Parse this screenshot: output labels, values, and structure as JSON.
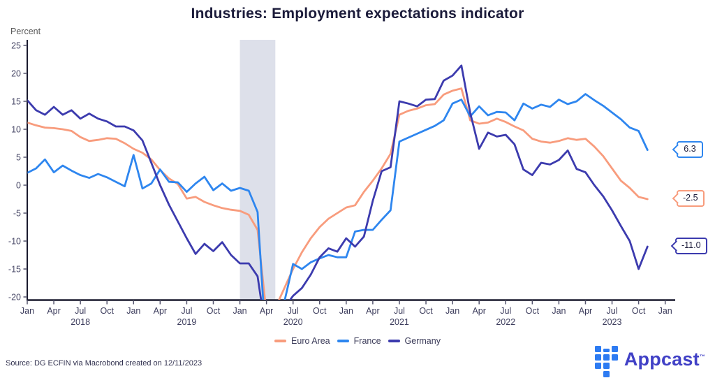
{
  "title": "Industries: Employment expectations indicator",
  "y_axis_label": "Percent",
  "source": "Source: DG ECFIN via Macrobond created on 12/11/2023",
  "logo": {
    "text": "Appcast",
    "tm": "™"
  },
  "colors": {
    "euro_area": "#F89C7D",
    "france": "#2E86EF",
    "germany": "#3C3BAE",
    "recession_band": "#DDE0EA",
    "axis": "#1A1A2E",
    "tick_label": "#4A4A68"
  },
  "legend": [
    {
      "label": "Euro Area",
      "color": "#F89C7D"
    },
    {
      "label": "France",
      "color": "#2E86EF"
    },
    {
      "label": "Germany",
      "color": "#3C3BAE"
    }
  ],
  "end_labels": [
    {
      "series": "France",
      "text": "6.3",
      "color": "#2E86EF"
    },
    {
      "series": "Euro Area",
      "text": "-2.5",
      "color": "#F89C7D"
    },
    {
      "series": "Germany",
      "text": "-11.0",
      "color": "#3C3BAE"
    }
  ],
  "chart_data": {
    "type": "line",
    "start_month": "2018-01",
    "end_month": "2023-11",
    "x_tick_labels": [
      "Jan",
      "Apr",
      "Jul",
      "Oct",
      "Jan",
      "Apr",
      "Jul",
      "Oct",
      "Jan",
      "Apr",
      "Jul",
      "Oct",
      "Jan",
      "Apr",
      "Jul",
      "Oct",
      "Jan",
      "Apr",
      "Jul",
      "Oct",
      "Jan",
      "Apr",
      "Jul",
      "Oct",
      "Jan"
    ],
    "year_labels": [
      "2018",
      "2019",
      "2020",
      "2021",
      "2022",
      "2023"
    ],
    "ylabel": "Percent",
    "ylim": [
      -20,
      25
    ],
    "yticks": [
      25,
      20,
      15,
      10,
      5,
      0,
      -5,
      -10,
      -15,
      -20
    ],
    "grid": false,
    "legend_position": "bottom",
    "recession_band": {
      "from": "2020-01",
      "to": "2020-05"
    },
    "series": [
      {
        "name": "Euro Area",
        "color": "#F89C7D",
        "values": [
          11.2,
          10.7,
          10.3,
          10.2,
          10.0,
          9.7,
          8.6,
          7.9,
          8.1,
          8.4,
          8.3,
          7.5,
          6.5,
          5.8,
          4.6,
          2.7,
          1.2,
          0.2,
          -2.4,
          -2.1,
          -3.0,
          -3.6,
          -4.1,
          -4.4,
          -4.6,
          -5.3,
          -8.0,
          -23.0,
          -22.0,
          -18.5,
          -15.0,
          -12.0,
          -9.5,
          -7.5,
          -6.0,
          -5.0,
          -4.0,
          -3.6,
          -1.2,
          0.8,
          3.0,
          5.6,
          12.6,
          13.3,
          13.7,
          14.3,
          14.5,
          16.2,
          16.9,
          17.3,
          11.6,
          11.0,
          11.2,
          11.9,
          11.3,
          10.5,
          9.8,
          8.3,
          7.8,
          7.6,
          7.9,
          8.4,
          8.1,
          8.3,
          6.9,
          5.2,
          3.0,
          0.8,
          -0.5,
          -2.1,
          -2.5
        ]
      },
      {
        "name": "France",
        "color": "#2E86EF",
        "values": [
          2.2,
          3.0,
          4.6,
          2.3,
          3.5,
          2.6,
          1.8,
          1.3,
          2.0,
          1.4,
          0.6,
          -0.2,
          5.4,
          -0.6,
          0.3,
          2.8,
          0.6,
          0.5,
          -1.2,
          0.3,
          1.5,
          -0.9,
          0.3,
          -1.0,
          -0.5,
          -1.0,
          -4.8,
          -30.0,
          -26.0,
          -21.0,
          -14.1,
          -15.0,
          -13.8,
          -13.1,
          -12.5,
          -12.9,
          -12.9,
          -8.3,
          -8.0,
          -8.0,
          -6.2,
          -4.5,
          7.8,
          8.5,
          9.2,
          9.9,
          10.6,
          11.6,
          14.6,
          15.3,
          12.3,
          14.1,
          12.5,
          13.1,
          13.0,
          11.6,
          14.6,
          13.7,
          14.4,
          14.0,
          15.3,
          14.5,
          15.0,
          16.3,
          15.2,
          14.2,
          13.0,
          11.8,
          10.3,
          9.7,
          6.3
        ]
      },
      {
        "name": "Germany",
        "color": "#3C3BAE",
        "values": [
          15.2,
          13.4,
          12.6,
          14.0,
          12.6,
          13.4,
          11.9,
          12.8,
          11.9,
          11.4,
          10.5,
          10.5,
          9.8,
          8.0,
          4.0,
          0.0,
          -3.5,
          -6.5,
          -9.5,
          -12.3,
          -10.5,
          -11.8,
          -10.2,
          -12.5,
          -14.0,
          -14.0,
          -16.3,
          -27.0,
          -25.0,
          -22.0,
          -19.8,
          -18.4,
          -16.0,
          -12.9,
          -11.3,
          -11.9,
          -9.5,
          -11.0,
          -9.2,
          -2.8,
          2.5,
          3.2,
          15.0,
          14.6,
          14.1,
          15.3,
          15.4,
          18.7,
          19.6,
          21.4,
          12.9,
          6.5,
          9.4,
          8.7,
          9.0,
          7.3,
          2.8,
          1.8,
          4.0,
          3.7,
          4.5,
          6.2,
          2.9,
          2.3,
          0.0,
          -2.0,
          -4.5,
          -7.3,
          -10.0,
          -15.0,
          -11.0
        ]
      }
    ]
  }
}
